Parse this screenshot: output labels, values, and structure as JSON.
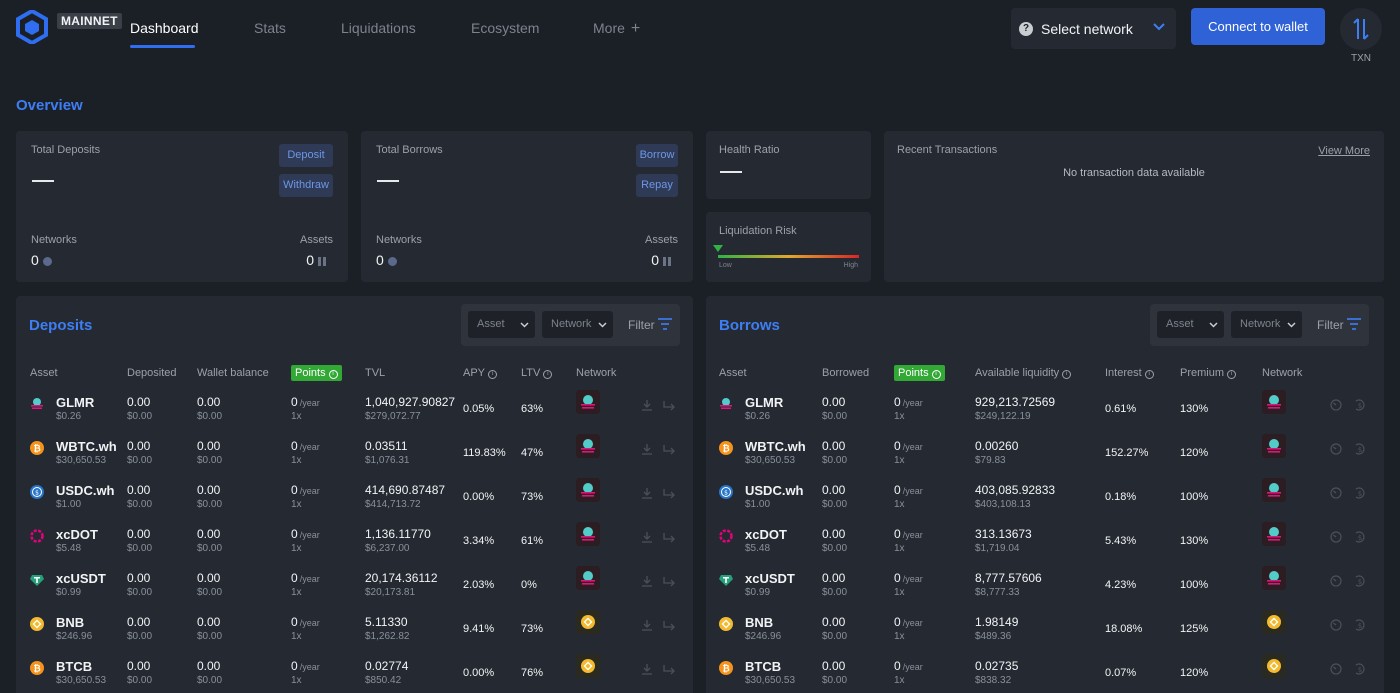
{
  "header": {
    "badge": "MAINNET",
    "nav": [
      "Dashboard",
      "Stats",
      "Liquidations",
      "Ecosystem",
      "More"
    ],
    "select_network": "Select network",
    "connect": "Connect to wallet",
    "txn": "TXN"
  },
  "overview": {
    "title": "Overview",
    "deposits_card": {
      "label": "Total Deposits",
      "btn1": "Deposit",
      "btn2": "Withdraw",
      "networks_label": "Networks",
      "networks_value": "0",
      "assets_label": "Assets",
      "assets_value": "0"
    },
    "borrows_card": {
      "label": "Total Borrows",
      "btn1": "Borrow",
      "btn2": "Repay",
      "networks_label": "Networks",
      "networks_value": "0",
      "assets_label": "Assets",
      "assets_value": "0"
    },
    "health": {
      "label": "Health Ratio"
    },
    "risk": {
      "label": "Liquidation Risk",
      "low": "Low",
      "high": "High"
    },
    "recent": {
      "label": "Recent Transactions",
      "view_more": "View More",
      "empty": "No transaction data available"
    }
  },
  "deposits": {
    "title": "Deposits",
    "filter": {
      "asset": "Asset",
      "network": "Network",
      "label": "Filter"
    },
    "headers": [
      "Asset",
      "Deposited",
      "Wallet balance",
      "Points",
      "TVL",
      "APY",
      "LTV",
      "Network"
    ],
    "rows": [
      {
        "sym": "GLMR",
        "price": "$0.26",
        "dep": "0.00",
        "dep_usd": "$0.00",
        "bal": "0.00",
        "bal_usd": "$0.00",
        "pts": "0",
        "per": "/year",
        "mult": "1x",
        "tvl": "1,040,927.90827",
        "tvl_usd": "$279,072.77",
        "apy": "0.05%",
        "ltv": "63%",
        "icon": "glmr-icon",
        "net": "moonbeam"
      },
      {
        "sym": "WBTC.wh",
        "price": "$30,650.53",
        "dep": "0.00",
        "dep_usd": "$0.00",
        "bal": "0.00",
        "bal_usd": "$0.00",
        "pts": "0",
        "per": "/year",
        "mult": "1x",
        "tvl": "0.03511",
        "tvl_usd": "$1,076.31",
        "apy": "119.83%",
        "ltv": "47%",
        "icon": "btc-icon",
        "net": "moonbeam"
      },
      {
        "sym": "USDC.wh",
        "price": "$1.00",
        "dep": "0.00",
        "dep_usd": "$0.00",
        "bal": "0.00",
        "bal_usd": "$0.00",
        "pts": "0",
        "per": "/year",
        "mult": "1x",
        "tvl": "414,690.87487",
        "tvl_usd": "$414,713.72",
        "apy": "0.00%",
        "ltv": "73%",
        "icon": "usdc-icon",
        "net": "moonbeam"
      },
      {
        "sym": "xcDOT",
        "price": "$5.48",
        "dep": "0.00",
        "dep_usd": "$0.00",
        "bal": "0.00",
        "bal_usd": "$0.00",
        "pts": "0",
        "per": "/year",
        "mult": "1x",
        "tvl": "1,136.11770",
        "tvl_usd": "$6,237.00",
        "apy": "3.34%",
        "ltv": "61%",
        "icon": "dot-icon",
        "net": "moonbeam"
      },
      {
        "sym": "xcUSDT",
        "price": "$0.99",
        "dep": "0.00",
        "dep_usd": "$0.00",
        "bal": "0.00",
        "bal_usd": "$0.00",
        "pts": "0",
        "per": "/year",
        "mult": "1x",
        "tvl": "20,174.36112",
        "tvl_usd": "$20,173.81",
        "apy": "2.03%",
        "ltv": "0%",
        "icon": "usdt-icon",
        "net": "moonbeam"
      },
      {
        "sym": "BNB",
        "price": "$246.96",
        "dep": "0.00",
        "dep_usd": "$0.00",
        "bal": "0.00",
        "bal_usd": "$0.00",
        "pts": "0",
        "per": "/year",
        "mult": "1x",
        "tvl": "5.11330",
        "tvl_usd": "$1,262.82",
        "apy": "9.41%",
        "ltv": "73%",
        "icon": "bnb-icon",
        "net": "bnb"
      },
      {
        "sym": "BTCB",
        "price": "$30,650.53",
        "dep": "0.00",
        "dep_usd": "$0.00",
        "bal": "0.00",
        "bal_usd": "$0.00",
        "pts": "0",
        "per": "/year",
        "mult": "1x",
        "tvl": "0.02774",
        "tvl_usd": "$850.42",
        "apy": "0.00%",
        "ltv": "76%",
        "icon": "btc-icon",
        "net": "bnb"
      }
    ]
  },
  "borrows": {
    "title": "Borrows",
    "filter": {
      "asset": "Asset",
      "network": "Network",
      "label": "Filter"
    },
    "headers": [
      "Asset",
      "Borrowed",
      "Points",
      "Available liquidity",
      "Interest",
      "Premium",
      "Network"
    ],
    "rows": [
      {
        "sym": "GLMR",
        "price": "$0.26",
        "bor": "0.00",
        "bor_usd": "$0.00",
        "pts": "0",
        "per": "/year",
        "mult": "1x",
        "liq": "929,213.72569",
        "liq_usd": "$249,122.19",
        "int": "0.61%",
        "prem": "130%",
        "icon": "glmr-icon",
        "net": "moonbeam"
      },
      {
        "sym": "WBTC.wh",
        "price": "$30,650.53",
        "bor": "0.00",
        "bor_usd": "$0.00",
        "pts": "0",
        "per": "/year",
        "mult": "1x",
        "liq": "0.00260",
        "liq_usd": "$79.83",
        "int": "152.27%",
        "prem": "120%",
        "icon": "btc-icon",
        "net": "moonbeam"
      },
      {
        "sym": "USDC.wh",
        "price": "$1.00",
        "bor": "0.00",
        "bor_usd": "$0.00",
        "pts": "0",
        "per": "/year",
        "mult": "1x",
        "liq": "403,085.92833",
        "liq_usd": "$403,108.13",
        "int": "0.18%",
        "prem": "100%",
        "icon": "usdc-icon",
        "net": "moonbeam"
      },
      {
        "sym": "xcDOT",
        "price": "$5.48",
        "bor": "0.00",
        "bor_usd": "$0.00",
        "pts": "0",
        "per": "/year",
        "mult": "1x",
        "liq": "313.13673",
        "liq_usd": "$1,719.04",
        "int": "5.43%",
        "prem": "130%",
        "icon": "dot-icon",
        "net": "moonbeam"
      },
      {
        "sym": "xcUSDT",
        "price": "$0.99",
        "bor": "0.00",
        "bor_usd": "$0.00",
        "pts": "0",
        "per": "/year",
        "mult": "1x",
        "liq": "8,777.57606",
        "liq_usd": "$8,777.33",
        "int": "4.23%",
        "prem": "100%",
        "icon": "usdt-icon",
        "net": "moonbeam"
      },
      {
        "sym": "BNB",
        "price": "$246.96",
        "bor": "0.00",
        "bor_usd": "$0.00",
        "pts": "0",
        "per": "/year",
        "mult": "1x",
        "liq": "1.98149",
        "liq_usd": "$489.36",
        "int": "18.08%",
        "prem": "125%",
        "icon": "bnb-icon",
        "net": "bnb"
      },
      {
        "sym": "BTCB",
        "price": "$30,650.53",
        "bor": "0.00",
        "bor_usd": "$0.00",
        "pts": "0",
        "per": "/year",
        "mult": "1x",
        "liq": "0.02735",
        "liq_usd": "$838.32",
        "int": "0.07%",
        "prem": "120%",
        "icon": "btc-icon",
        "net": "bnb"
      }
    ]
  },
  "colors": {
    "accent": "#3d7ef5",
    "button": "#2f62d6",
    "points": "#32a835",
    "bg": "#1b1f26",
    "card": "#252a32"
  }
}
